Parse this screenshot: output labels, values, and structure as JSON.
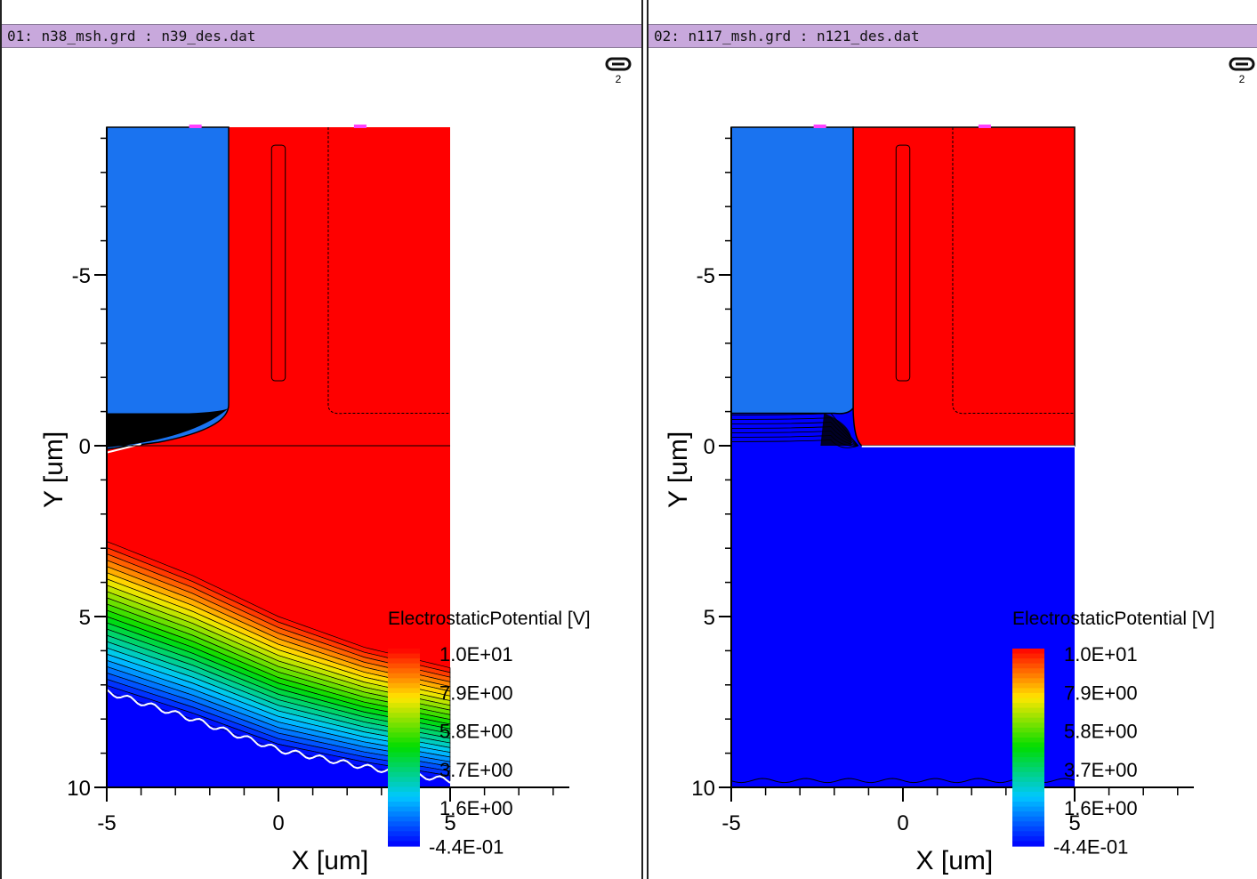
{
  "panels": [
    {
      "title": "01: n38_msh.grd : n39_des.dat",
      "link_badge": "2",
      "link_icon": "link-icon"
    },
    {
      "title": "02: n117_msh.grd : n121_des.dat",
      "link_badge": "2",
      "link_icon": "link-icon"
    }
  ],
  "colors": {
    "title_bar": "#c8a8dc",
    "high": "#ff0000",
    "low": "#0000ff",
    "oxide": "#1a73f0",
    "contact": "#ff40ff"
  },
  "chart_data": [
    {
      "type": "heatmap",
      "title": "",
      "xlabel": "X [um]",
      "ylabel": "Y [um]",
      "xlim": [
        -5,
        5
      ],
      "ylim": [
        10,
        -9.3
      ],
      "x_ticks": [
        "-5",
        "0",
        "5"
      ],
      "y_ticks": [
        "-5",
        "0",
        "5",
        "10"
      ],
      "legend": {
        "title": "ElectrostaticPotential [V]",
        "labels": [
          "1.0E+01",
          "7.9E+00",
          "5.8E+00",
          "3.7E+00",
          "1.6E+00",
          "-4.4E-01"
        ],
        "min": -0.44,
        "max": 10.0,
        "placement": "bottom-right"
      },
      "description_regions": {
        "junction_depth_um_at_x": [
          [
            -5,
            2.8
          ],
          [
            -2.5,
            3.8
          ],
          [
            0,
            5.0
          ],
          [
            2.5,
            5.9
          ],
          [
            5,
            6.5
          ]
        ],
        "depletion_edge_um_at_x": [
          [
            -5,
            7.2
          ],
          [
            -2.5,
            8.0
          ],
          [
            0,
            8.9
          ],
          [
            2.5,
            9.4
          ],
          [
            5,
            9.8
          ]
        ]
      }
    },
    {
      "type": "heatmap",
      "title": "",
      "xlabel": "X [um]",
      "ylabel": "Y [um]",
      "xlim": [
        -5,
        5
      ],
      "ylim": [
        10,
        -9.3
      ],
      "x_ticks": [
        "-5",
        "0",
        "5"
      ],
      "y_ticks": [
        "-5",
        "0",
        "5",
        "10"
      ],
      "legend": {
        "title": "ElectrostaticPotential [V]",
        "labels": [
          "1.0E+01",
          "7.9E+00",
          "5.8E+00",
          "3.7E+00",
          "1.6E+00",
          "-4.4E-01"
        ],
        "min": -0.44,
        "max": 10.0,
        "placement": "bottom-right"
      },
      "description_regions": {
        "bulk_potential_v": -0.44,
        "top_region_potential_v": 10.0
      }
    }
  ]
}
